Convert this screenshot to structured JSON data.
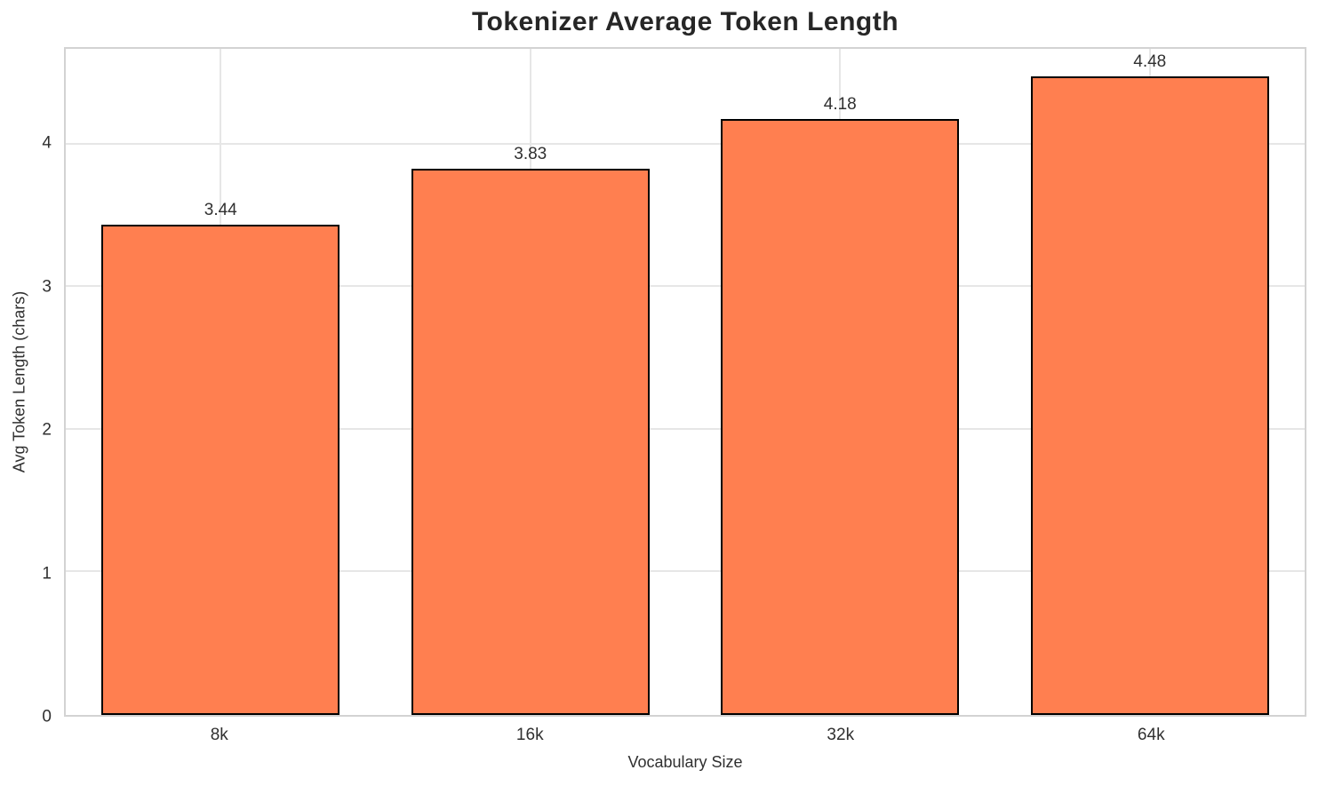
{
  "chart_data": {
    "type": "bar",
    "title": "Tokenizer Average Token Length",
    "xlabel": "Vocabulary Size",
    "ylabel": "Avg Token Length (chars)",
    "categories": [
      "8k",
      "16k",
      "32k",
      "64k"
    ],
    "values": [
      3.44,
      3.83,
      4.18,
      4.48
    ],
    "value_labels": [
      "3.44",
      "3.83",
      "4.18",
      "4.48"
    ],
    "y_ticks": [
      0,
      1,
      2,
      3,
      4
    ],
    "ylim": [
      0,
      4.67
    ],
    "grid": true,
    "legend": "none",
    "colors": {
      "bar_fill": "#FF7F50",
      "bar_edge": "#000000",
      "gridline": "#e6e6e6",
      "spine": "#d3d3d3",
      "text": "#303030",
      "title": "#262626",
      "background": "#ffffff"
    }
  }
}
